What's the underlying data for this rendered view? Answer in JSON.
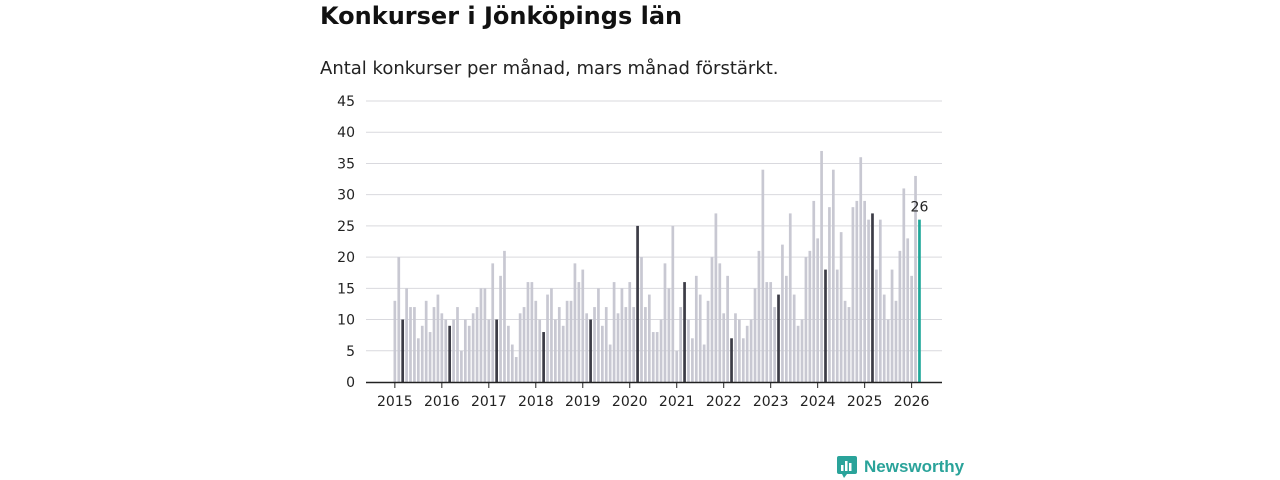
{
  "title": "Konkurser i Jönköpings län",
  "subtitle": "Antal konkurser per månad, mars månad förstärkt.",
  "brand": "Newsworthy",
  "colors": {
    "bar": "#c8c8d2",
    "highlight": "#3c3c46",
    "latest": "#21a89a",
    "axis": "#222222"
  },
  "chart_data": {
    "type": "bar",
    "title": "Konkurser i Jönköpings län",
    "subtitle": "Antal konkurser per månad, mars månad förstärkt.",
    "xlabel": "",
    "ylabel": "",
    "ylim": [
      0,
      45
    ],
    "yticks": [
      0,
      5,
      10,
      15,
      20,
      25,
      30,
      35,
      40,
      45
    ],
    "year_labels": [
      "2015",
      "2016",
      "2017",
      "2018",
      "2019",
      "2020",
      "2021",
      "2022",
      "2023",
      "2024",
      "2025",
      "2026"
    ],
    "start": "2015-01",
    "highlight_month": 3,
    "latest_label": "26",
    "values": [
      13,
      20,
      10,
      15,
      12,
      12,
      7,
      9,
      13,
      8,
      12,
      14,
      11,
      10,
      9,
      10,
      12,
      5,
      10,
      9,
      11,
      12,
      15,
      15,
      10,
      19,
      10,
      17,
      21,
      9,
      6,
      4,
      11,
      12,
      16,
      16,
      13,
      10,
      8,
      14,
      15,
      10,
      12,
      9,
      13,
      13,
      19,
      16,
      18,
      11,
      10,
      12,
      15,
      9,
      12,
      6,
      16,
      11,
      15,
      12,
      16,
      12,
      25,
      20,
      12,
      14,
      8,
      8,
      10,
      19,
      15,
      25,
      5,
      12,
      16,
      10,
      7,
      17,
      14,
      6,
      13,
      20,
      27,
      19,
      11,
      17,
      7,
      11,
      10,
      7,
      9,
      10,
      15,
      21,
      34,
      16,
      16,
      12,
      14,
      22,
      17,
      27,
      14,
      9,
      10,
      20,
      21,
      29,
      23,
      37,
      18,
      28,
      34,
      18,
      24,
      13,
      12,
      28,
      29,
      36,
      29,
      26,
      27,
      18,
      26,
      14,
      10,
      18,
      13,
      21,
      31,
      23,
      17,
      33,
      26
    ]
  }
}
